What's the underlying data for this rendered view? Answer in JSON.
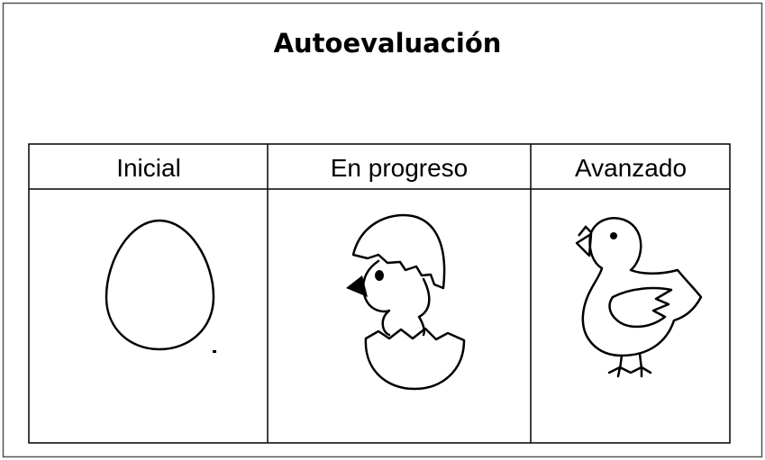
{
  "title": "Autoevaluación",
  "table": {
    "headers": [
      "Inicial",
      "En progreso",
      "Avanzado"
    ]
  }
}
